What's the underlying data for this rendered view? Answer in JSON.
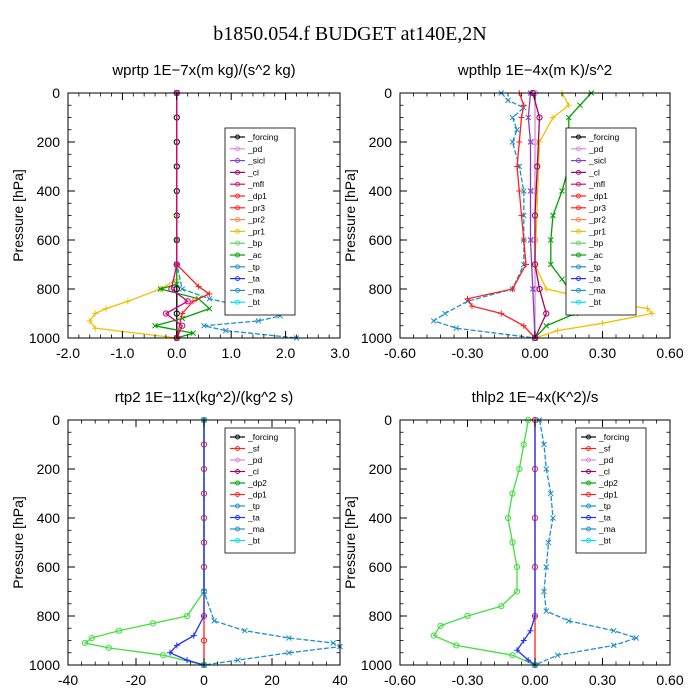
{
  "figure_title": "b1850.054.f  BUDGET at140E,2N",
  "chart_data": [
    {
      "type": "line",
      "title": "wprtp   1E−7x(m kg)/(s^2 kg)",
      "ylabel": "Pressure [hPa]",
      "xlim": [
        -2.0,
        3.0
      ],
      "ylim": [
        0,
        1000
      ],
      "xticks": [
        "-2.0",
        "-1.0",
        "0.0",
        "1.0",
        "2.0",
        "3.0"
      ],
      "yticks": [
        "0",
        "200",
        "400",
        "600",
        "800",
        "1000"
      ],
      "legend": [
        "_forcing",
        "_pd",
        "_sicl",
        "_cl",
        "_mfl",
        "_dp1",
        "_pr3",
        "_pr2",
        "_pr1",
        "_bp",
        "_ac",
        "_tp",
        "_ta",
        "_ma",
        "_bt"
      ],
      "series": [
        {
          "name": "_forcing",
          "color": "#000000",
          "marker": "o",
          "y": [
            0,
            100,
            200,
            300,
            400,
            500,
            600,
            700,
            800,
            900,
            1000
          ],
          "x": [
            0,
            0,
            0,
            0,
            0,
            0,
            0,
            0,
            0,
            0,
            0
          ]
        },
        {
          "name": "_pr1",
          "color": "#f0c000",
          "marker": "+",
          "y": [
            0,
            500,
            760,
            800,
            850,
            880,
            900,
            930,
            960,
            1000
          ],
          "x": [
            0,
            0,
            0,
            -0.3,
            -0.9,
            -1.3,
            -1.5,
            -1.6,
            -1.5,
            0
          ]
        },
        {
          "name": "_ac",
          "color": "#00a000",
          "marker": "x",
          "y": [
            0,
            600,
            780,
            800,
            840,
            880,
            920,
            950,
            980,
            1000
          ],
          "x": [
            0,
            0,
            0,
            -0.3,
            0.4,
            0.6,
            0.1,
            -0.4,
            0.3,
            0
          ]
        },
        {
          "name": "_tp",
          "color": "#1f8fc8",
          "marker": "x",
          "y": [
            0,
            700,
            800,
            840,
            880,
            910,
            930,
            950,
            970,
            1000
          ],
          "x": [
            0,
            0,
            0.1,
            0.6,
            1.4,
            1.9,
            1.5,
            0.5,
            0.9,
            2.2
          ]
        },
        {
          "name": "_pr3",
          "color": "#ff2020",
          "marker": "+",
          "y": [
            0,
            700,
            790,
            820,
            850,
            900,
            1000
          ],
          "x": [
            0,
            0,
            0.4,
            0.6,
            0.3,
            0.1,
            0
          ]
        },
        {
          "name": "_dp1",
          "color": "#d00080",
          "marker": "o",
          "y": [
            0,
            700,
            800,
            850,
            900,
            950,
            1000
          ],
          "x": [
            0,
            0,
            -0.1,
            0.2,
            -0.2,
            0.1,
            0
          ]
        }
      ]
    },
    {
      "type": "line",
      "title": "wpthlp   1E−4x(m K)/s^2",
      "ylabel": "Pressure [hPa]",
      "xlim": [
        -0.6,
        0.6
      ],
      "ylim": [
        0,
        1000
      ],
      "xticks": [
        "-0.60",
        "-0.30",
        "0.00",
        "0.30",
        "0.60"
      ],
      "yticks": [
        "0",
        "200",
        "400",
        "600",
        "800",
        "1000"
      ],
      "legend": [
        "_forcing",
        "_pd",
        "_sicl",
        "_cl",
        "_mfl",
        "_dp1",
        "_pr3",
        "_pr2",
        "_pr1",
        "_bp",
        "_ac",
        "_tp",
        "_ta",
        "_ma",
        "_bt"
      ],
      "series": [
        {
          "name": "_forcing",
          "color": "#d88ad8",
          "marker": "o",
          "y": [
            0,
            200,
            400,
            600,
            800,
            1000
          ],
          "x": [
            0,
            0,
            0,
            0,
            0,
            0
          ]
        },
        {
          "name": "_ac",
          "color": "#00a000",
          "marker": "x",
          "y": [
            0,
            50,
            100,
            200,
            300,
            400,
            500,
            600,
            700,
            760,
            800,
            840,
            900,
            950,
            1000
          ],
          "x": [
            0.25,
            0.2,
            0.15,
            0.15,
            0.15,
            0.12,
            0.08,
            0.07,
            0.07,
            0.12,
            0.15,
            0.35,
            0.18,
            0.05,
            0
          ]
        },
        {
          "name": "_tp",
          "color": "#1f8fc8",
          "marker": "x",
          "y": [
            0,
            30,
            60,
            100,
            150,
            200,
            300,
            400,
            500,
            600,
            700,
            800,
            850,
            900,
            930,
            960,
            1000
          ],
          "x": [
            -0.15,
            -0.12,
            -0.05,
            -0.1,
            -0.08,
            -0.1,
            -0.07,
            -0.05,
            -0.05,
            -0.05,
            -0.05,
            -0.1,
            -0.3,
            -0.4,
            -0.45,
            -0.35,
            0
          ]
        },
        {
          "name": "_pr3",
          "color": "#ff2020",
          "marker": "+",
          "y": [
            0,
            50,
            100,
            200,
            300,
            400,
            500,
            600,
            700,
            800,
            840,
            870,
            900,
            950,
            1000
          ],
          "x": [
            -0.07,
            -0.05,
            -0.06,
            -0.07,
            -0.08,
            -0.07,
            -0.06,
            -0.05,
            -0.04,
            -0.1,
            -0.3,
            -0.28,
            -0.15,
            -0.05,
            0
          ]
        },
        {
          "name": "_pr1",
          "color": "#f0c000",
          "marker": "+",
          "y": [
            0,
            50,
            100,
            200,
            700,
            800,
            850,
            880,
            900,
            940,
            970,
            1000
          ],
          "x": [
            0.12,
            0.15,
            0.08,
            0.02,
            0,
            0.05,
            0.3,
            0.5,
            0.52,
            0.3,
            0.1,
            0
          ]
        },
        {
          "name": "_sicl",
          "color": "#8040c0",
          "marker": "x",
          "y": [
            0,
            100,
            200,
            400,
            600,
            800,
            1000
          ],
          "x": [
            -0.02,
            -0.03,
            -0.02,
            -0.02,
            -0.02,
            -0.01,
            0
          ]
        },
        {
          "name": "_cl",
          "color": "#a00060",
          "marker": "o",
          "y": [
            0,
            100,
            300,
            500,
            700,
            800,
            900,
            1000
          ],
          "x": [
            -0.01,
            0.02,
            0.01,
            0,
            0,
            0.02,
            0.05,
            0
          ]
        }
      ]
    },
    {
      "type": "line",
      "title": "rtp2   1E−11x(kg^2)/(kg^2 s)",
      "ylabel": "Pressure [hPa]",
      "xlim": [
        -40,
        40
      ],
      "ylim": [
        0,
        1000
      ],
      "xticks": [
        "-40",
        "-20",
        "0",
        "20",
        "40"
      ],
      "yticks": [
        "0",
        "200",
        "400",
        "600",
        "800",
        "1000"
      ],
      "legend": [
        "_forcing",
        "_sf",
        "_pd",
        "_cl",
        "_dp2",
        "_dp1",
        "_tp",
        "_ta",
        "_ma",
        "_bt"
      ],
      "series": [
        {
          "name": "_forcing",
          "color": "#ff2020",
          "marker": "o",
          "y": [
            0,
            100,
            200,
            300,
            400,
            500,
            600,
            700,
            800,
            900,
            1000
          ],
          "x": [
            0,
            0,
            0,
            0,
            0,
            0,
            0,
            0,
            0,
            0,
            0
          ]
        },
        {
          "name": "_dp1",
          "color": "#40e040",
          "marker": "o",
          "y": [
            0,
            700,
            800,
            830,
            860,
            890,
            910,
            930,
            960,
            1000
          ],
          "x": [
            0,
            0,
            -5,
            -15,
            -25,
            -33,
            -35,
            -28,
            -12,
            0
          ]
        },
        {
          "name": "_tp",
          "color": "#1f8fc8",
          "marker": "x",
          "y": [
            0,
            700,
            820,
            860,
            890,
            910,
            925,
            950,
            980,
            1000
          ],
          "x": [
            0,
            0,
            3,
            12,
            25,
            38,
            40,
            25,
            10,
            0
          ]
        },
        {
          "name": "_ta",
          "color": "#2030ff",
          "marker": "+",
          "y": [
            0,
            800,
            880,
            920,
            950,
            980,
            1000
          ],
          "x": [
            0,
            0,
            -3,
            -8,
            -10,
            -5,
            0
          ]
        }
      ]
    },
    {
      "type": "line",
      "title": "thlp2   1E−4x(K^2)/s",
      "ylabel": "Pressure [hPa]",
      "xlim": [
        -0.6,
        0.6
      ],
      "ylim": [
        0,
        1000
      ],
      "xticks": [
        "-0.60",
        "-0.30",
        "0.00",
        "0.30",
        "0.60"
      ],
      "yticks": [
        "0",
        "200",
        "400",
        "600",
        "800",
        "1000"
      ],
      "legend": [
        "_forcing",
        "_sf",
        "_pd",
        "_cl",
        "_dp2",
        "_dp1",
        "_tp",
        "_ta",
        "_ma",
        "_bt"
      ],
      "series": [
        {
          "name": "_forcing",
          "color": "#ff2020",
          "marker": "o",
          "y": [
            0,
            200,
            400,
            600,
            800,
            1000
          ],
          "x": [
            0,
            0,
            0,
            0,
            0,
            0
          ]
        },
        {
          "name": "_dp1",
          "color": "#40e040",
          "marker": "o",
          "y": [
            0,
            100,
            200,
            300,
            400,
            500,
            600,
            700,
            760,
            800,
            840,
            880,
            920,
            960,
            1000
          ],
          "x": [
            -0.03,
            -0.05,
            -0.07,
            -0.1,
            -0.12,
            -0.1,
            -0.08,
            -0.08,
            -0.15,
            -0.3,
            -0.42,
            -0.45,
            -0.35,
            -0.1,
            0
          ]
        },
        {
          "name": "_tp",
          "color": "#1f8fc8",
          "marker": "x",
          "y": [
            0,
            100,
            200,
            300,
            400,
            500,
            600,
            700,
            780,
            820,
            860,
            890,
            920,
            960,
            1000
          ],
          "x": [
            0.02,
            0.04,
            0.05,
            0.07,
            0.08,
            0.06,
            0.05,
            0.04,
            0.05,
            0.15,
            0.35,
            0.45,
            0.35,
            0.1,
            0
          ]
        },
        {
          "name": "_ta",
          "color": "#2030ff",
          "marker": "+",
          "y": [
            0,
            800,
            860,
            900,
            940,
            980,
            1000
          ],
          "x": [
            0,
            0,
            -0.02,
            -0.05,
            -0.08,
            -0.03,
            0
          ]
        }
      ]
    }
  ]
}
